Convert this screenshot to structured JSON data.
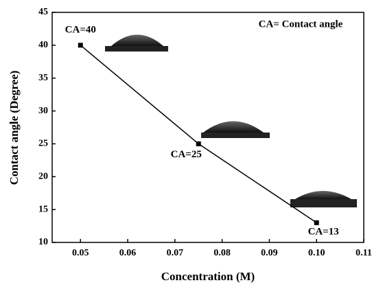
{
  "chart_data": {
    "type": "line",
    "x_label": "Concentration (M)",
    "y_label": "Contact angle (Degree)",
    "annotation": "CA= Contact angle",
    "x": [
      0.05,
      0.075,
      0.1
    ],
    "values": [
      40,
      25,
      13
    ],
    "value_labels": [
      "CA=40",
      "CA=25",
      "CA=13"
    ],
    "color": "#000000",
    "xlim": [
      0.044,
      0.11
    ],
    "ylim": [
      10,
      45
    ],
    "xticks": [
      0.05,
      0.06,
      0.07,
      0.08,
      0.09,
      {
        "value": 0.1,
        "label": "0.10"
      },
      0.11
    ],
    "yticks": [
      10,
      15,
      20,
      25,
      30,
      35,
      40,
      45
    ]
  }
}
